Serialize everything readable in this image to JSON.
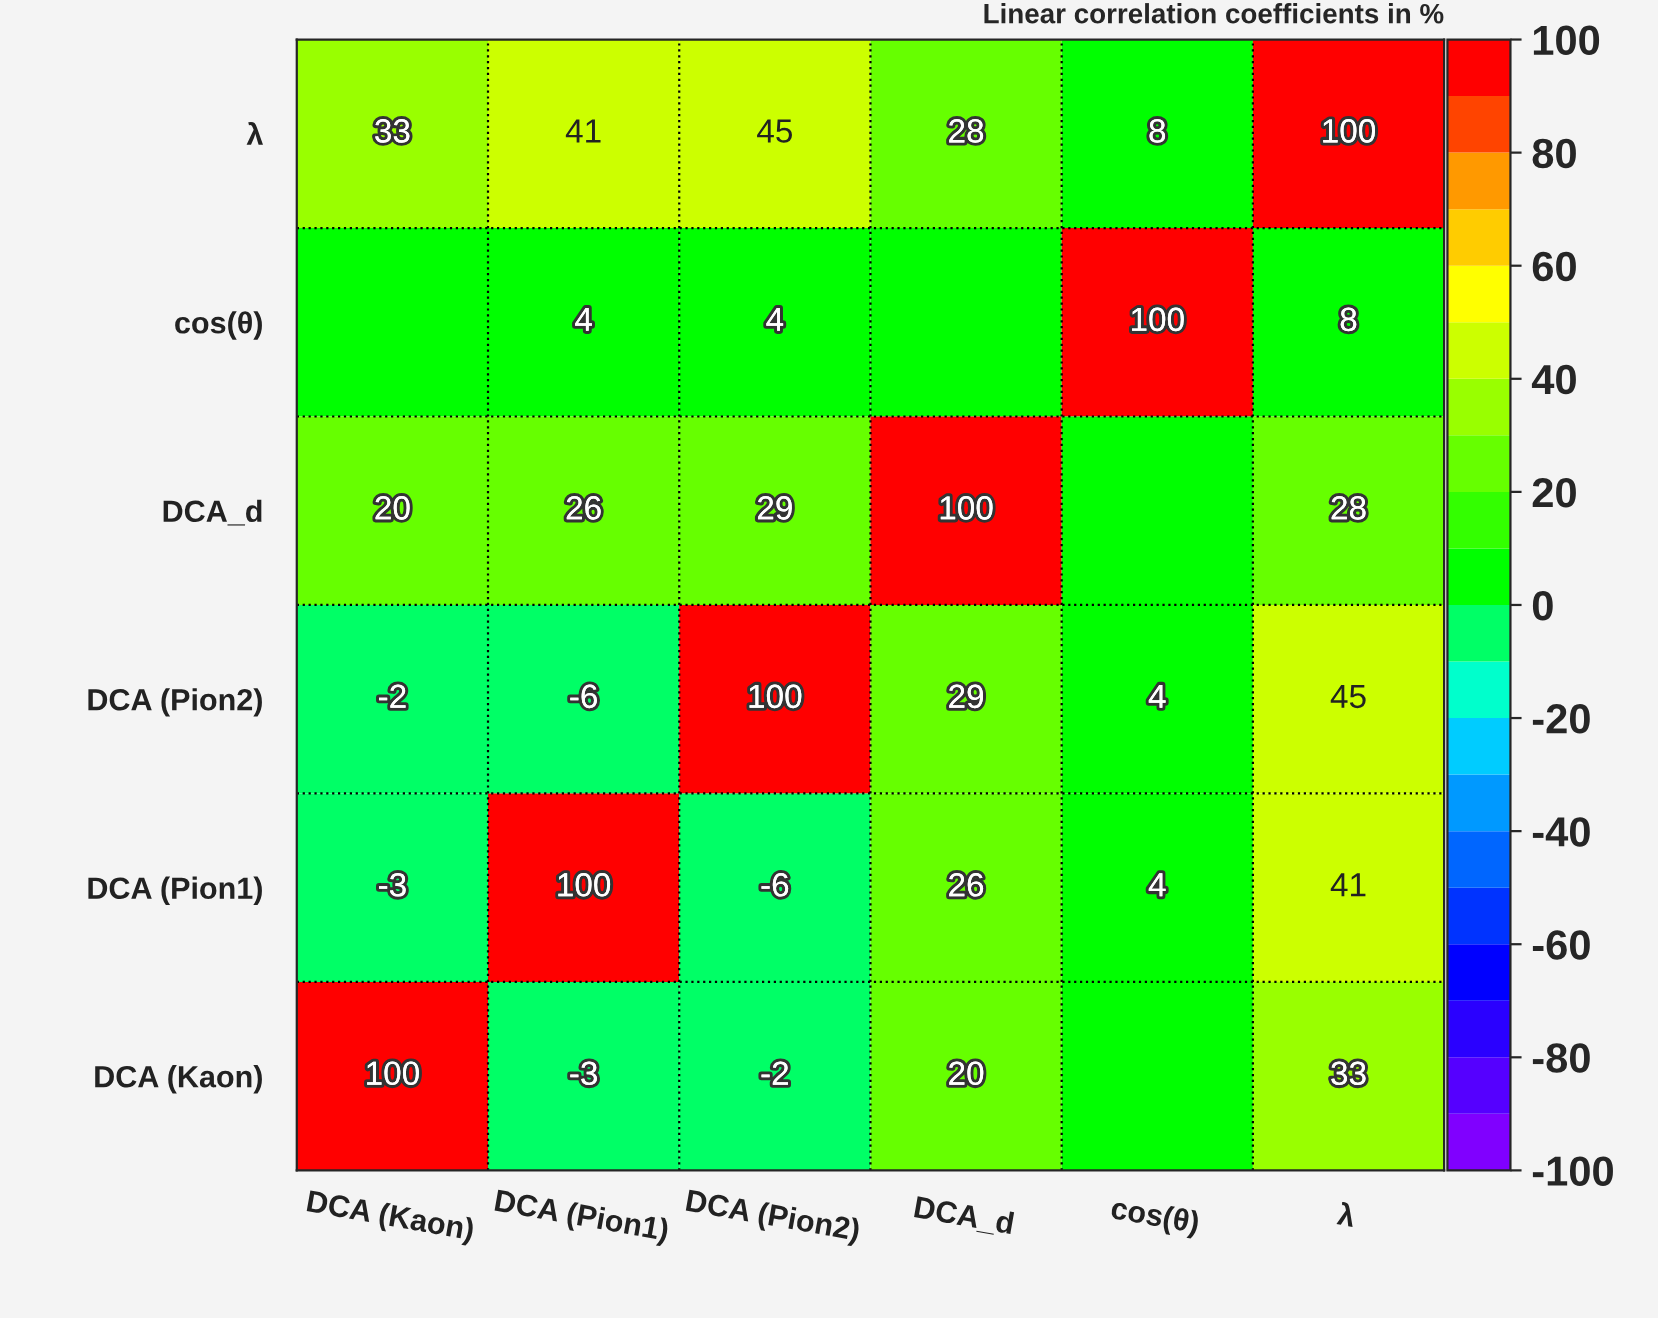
{
  "chart_data": {
    "type": "heatmap",
    "title": "Linear correlation coefficients in %",
    "categories": [
      "DCA (Kaon)",
      "DCA (Pion1)",
      "DCA (Pion2)",
      "DCA_d",
      "cos(θ)",
      "λ"
    ],
    "y_categories": [
      "λ",
      "cos(θ)",
      "DCA_d",
      "DCA (Pion2)",
      "DCA (Pion1)",
      "DCA (Kaon)"
    ],
    "cells": [
      [
        33,
        41,
        45,
        28,
        8,
        100
      ],
      [
        0,
        4,
        4,
        0,
        100,
        8
      ],
      [
        20,
        26,
        29,
        100,
        0,
        28
      ],
      [
        -2,
        -6,
        100,
        29,
        4,
        45
      ],
      [
        -3,
        100,
        -6,
        26,
        4,
        41
      ],
      [
        100,
        -3,
        -2,
        20,
        0,
        33
      ]
    ],
    "cell_labels": [
      [
        "33",
        "41",
        "45",
        "28",
        "8",
        "100"
      ],
      [
        null,
        "4",
        "4",
        null,
        "100",
        "8"
      ],
      [
        "20",
        "26",
        "29",
        "100",
        null,
        "28"
      ],
      [
        "-2",
        "-6",
        "100",
        "29",
        "4",
        "45"
      ],
      [
        "-3",
        "100",
        "-6",
        "26",
        "4",
        "41"
      ],
      [
        "100",
        "-3",
        "-2",
        "20",
        null,
        "33"
      ]
    ],
    "clim": [
      -100,
      100
    ],
    "cticks": [
      -100,
      -80,
      -60,
      -40,
      -20,
      0,
      20,
      40,
      60,
      80,
      100
    ],
    "grid": true
  }
}
